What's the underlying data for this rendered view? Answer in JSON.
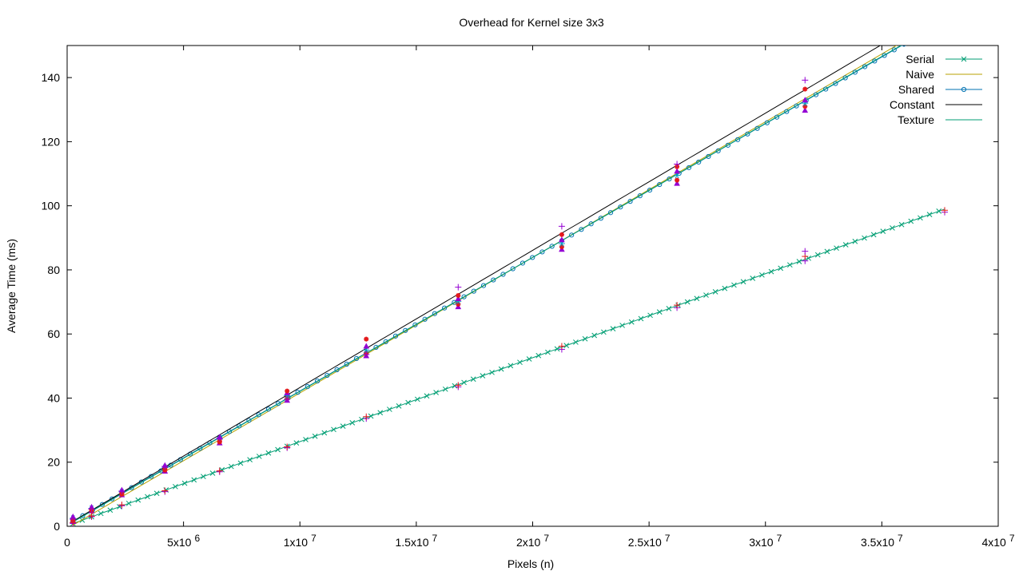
{
  "chart_data": {
    "type": "line",
    "title": "Overhead for Kernel size 3x3",
    "xlabel": "Pixels (n)",
    "ylabel": "Average Time (ms)",
    "xlim": [
      0,
      40000000
    ],
    "ylim": [
      0,
      150
    ],
    "grid": false,
    "legend_position": "top-right",
    "x_ticks": [
      {
        "value": 0,
        "label": "0",
        "exp": ""
      },
      {
        "value": 5000000,
        "label": "5x10",
        "exp": "6"
      },
      {
        "value": 10000000,
        "label": "1x10",
        "exp": "7"
      },
      {
        "value": 15000000,
        "label": "1.5x10",
        "exp": "7"
      },
      {
        "value": 20000000,
        "label": "2x10",
        "exp": "7"
      },
      {
        "value": 25000000,
        "label": "2.5x10",
        "exp": "7"
      },
      {
        "value": 30000000,
        "label": "3x10",
        "exp": "7"
      },
      {
        "value": 35000000,
        "label": "3.5x10",
        "exp": "7"
      },
      {
        "value": 40000000,
        "label": "4x10",
        "exp": "7"
      }
    ],
    "y_ticks": [
      0,
      20,
      40,
      60,
      80,
      100,
      120,
      140
    ],
    "series": [
      {
        "name": "Serial",
        "color": "#009e73",
        "marker": "x",
        "fit": {
          "slope": 2.62e-06,
          "intercept": 0.2,
          "x_end": 37700000
        }
      },
      {
        "name": "Naive",
        "color": "#b8a200",
        "marker": "none",
        "fit": {
          "slope": 4.23e-06,
          "intercept": -0.7,
          "x_end": 40000000
        }
      },
      {
        "name": "Shared",
        "color": "#0072b2",
        "marker": "circle",
        "fit": {
          "slope": 4.17e-06,
          "intercept": 0.5,
          "x_end": 40000000
        }
      },
      {
        "name": "Constant",
        "color": "#000000",
        "marker": "none",
        "fit": {
          "slope": 4.28e-06,
          "intercept": 0.5,
          "x_end": 40000000
        }
      },
      {
        "name": "Texture",
        "color": "#009e73",
        "marker": "none",
        "fit": {
          "slope": 4.18e-06,
          "intercept": 0.3,
          "x_end": 40000000
        }
      }
    ],
    "gpu_samples": [
      {
        "x": 250000,
        "values": [
          1.5,
          2.0,
          2.5,
          3.0,
          1.8,
          2.2
        ]
      },
      {
        "x": 1050000,
        "values": [
          4.8,
          5.2,
          5.6,
          6.0,
          5.0,
          5.4
        ]
      },
      {
        "x": 2350000,
        "values": [
          9.8,
          10.3,
          10.8,
          11.3,
          10.0,
          11.0
        ]
      },
      {
        "x": 4200000,
        "values": [
          17.2,
          17.8,
          18.4,
          19.0,
          17.5,
          18.7
        ]
      },
      {
        "x": 6550000,
        "values": [
          26.0,
          26.6,
          27.2,
          27.8,
          26.3,
          27.5
        ]
      },
      {
        "x": 9450000,
        "values": [
          39.3,
          40.0,
          40.8,
          41.6,
          42.2,
          39.6
        ]
      },
      {
        "x": 12850000,
        "values": [
          53.2,
          54.0,
          55.0,
          56.2,
          58.4,
          53.6
        ]
      },
      {
        "x": 16800000,
        "values": [
          68.5,
          69.3,
          70.2,
          71.0,
          72.0,
          74.6
        ]
      },
      {
        "x": 21250000,
        "values": [
          86.4,
          87.2,
          88.2,
          89.4,
          91.0,
          93.6
        ]
      },
      {
        "x": 26200000,
        "values": [
          107.0,
          108.0,
          109.5,
          110.8,
          112.2,
          113.0
        ]
      },
      {
        "x": 31700000,
        "values": [
          129.8,
          131.0,
          132.0,
          133.0,
          136.4,
          139.2
        ]
      }
    ],
    "serial_samples": [
      {
        "x": 250000,
        "values": [
          1.0,
          1.2
        ]
      },
      {
        "x": 1050000,
        "values": [
          3.0,
          3.2
        ]
      },
      {
        "x": 2350000,
        "values": [
          6.4,
          6.7
        ]
      },
      {
        "x": 4200000,
        "values": [
          10.8,
          11.1
        ]
      },
      {
        "x": 6550000,
        "values": [
          17.0,
          17.3
        ]
      },
      {
        "x": 9450000,
        "values": [
          24.5,
          24.8
        ]
      },
      {
        "x": 12850000,
        "values": [
          33.6,
          34.2
        ]
      },
      {
        "x": 16800000,
        "values": [
          43.5,
          44.0
        ]
      },
      {
        "x": 21250000,
        "values": [
          55.2,
          56.2
        ]
      },
      {
        "x": 26200000,
        "values": [
          68.2,
          69.0
        ]
      },
      {
        "x": 31700000,
        "values": [
          82.8,
          84.2,
          85.8
        ]
      },
      {
        "x": 37700000,
        "values": [
          98.0,
          98.6
        ]
      }
    ]
  }
}
